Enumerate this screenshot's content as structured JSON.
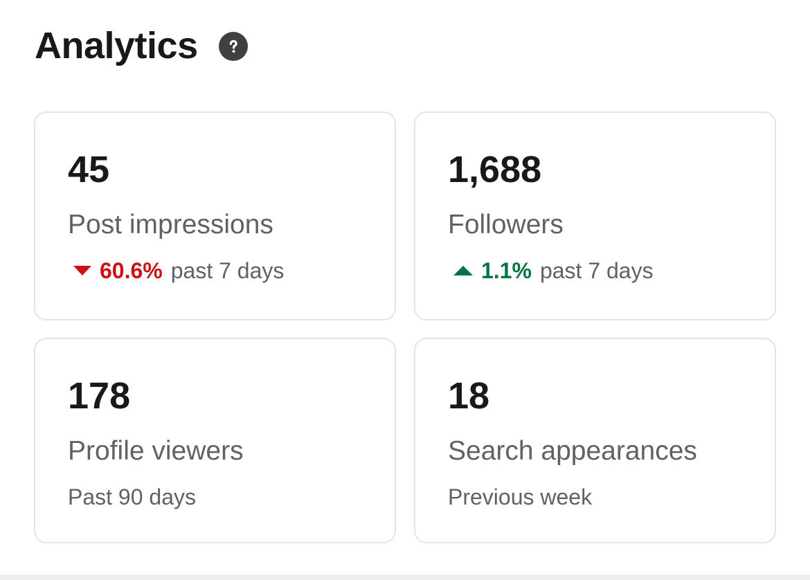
{
  "header": {
    "title": "Analytics",
    "help_icon": "question-circle-icon"
  },
  "cards": {
    "impressions": {
      "value": "45",
      "label": "Post impressions",
      "trend_direction": "down",
      "trend_percent": "60.6%",
      "trend_period": "past 7 days",
      "trend_color": "#cc1016"
    },
    "followers": {
      "value": "1,688",
      "label": "Followers",
      "trend_direction": "up",
      "trend_percent": "1.1%",
      "trend_period": "past 7 days",
      "trend_color": "#057642"
    },
    "viewers": {
      "value": "178",
      "label": "Profile viewers",
      "period": "Past 90 days"
    },
    "search": {
      "value": "18",
      "label": "Search appearances",
      "period": "Previous week"
    }
  }
}
